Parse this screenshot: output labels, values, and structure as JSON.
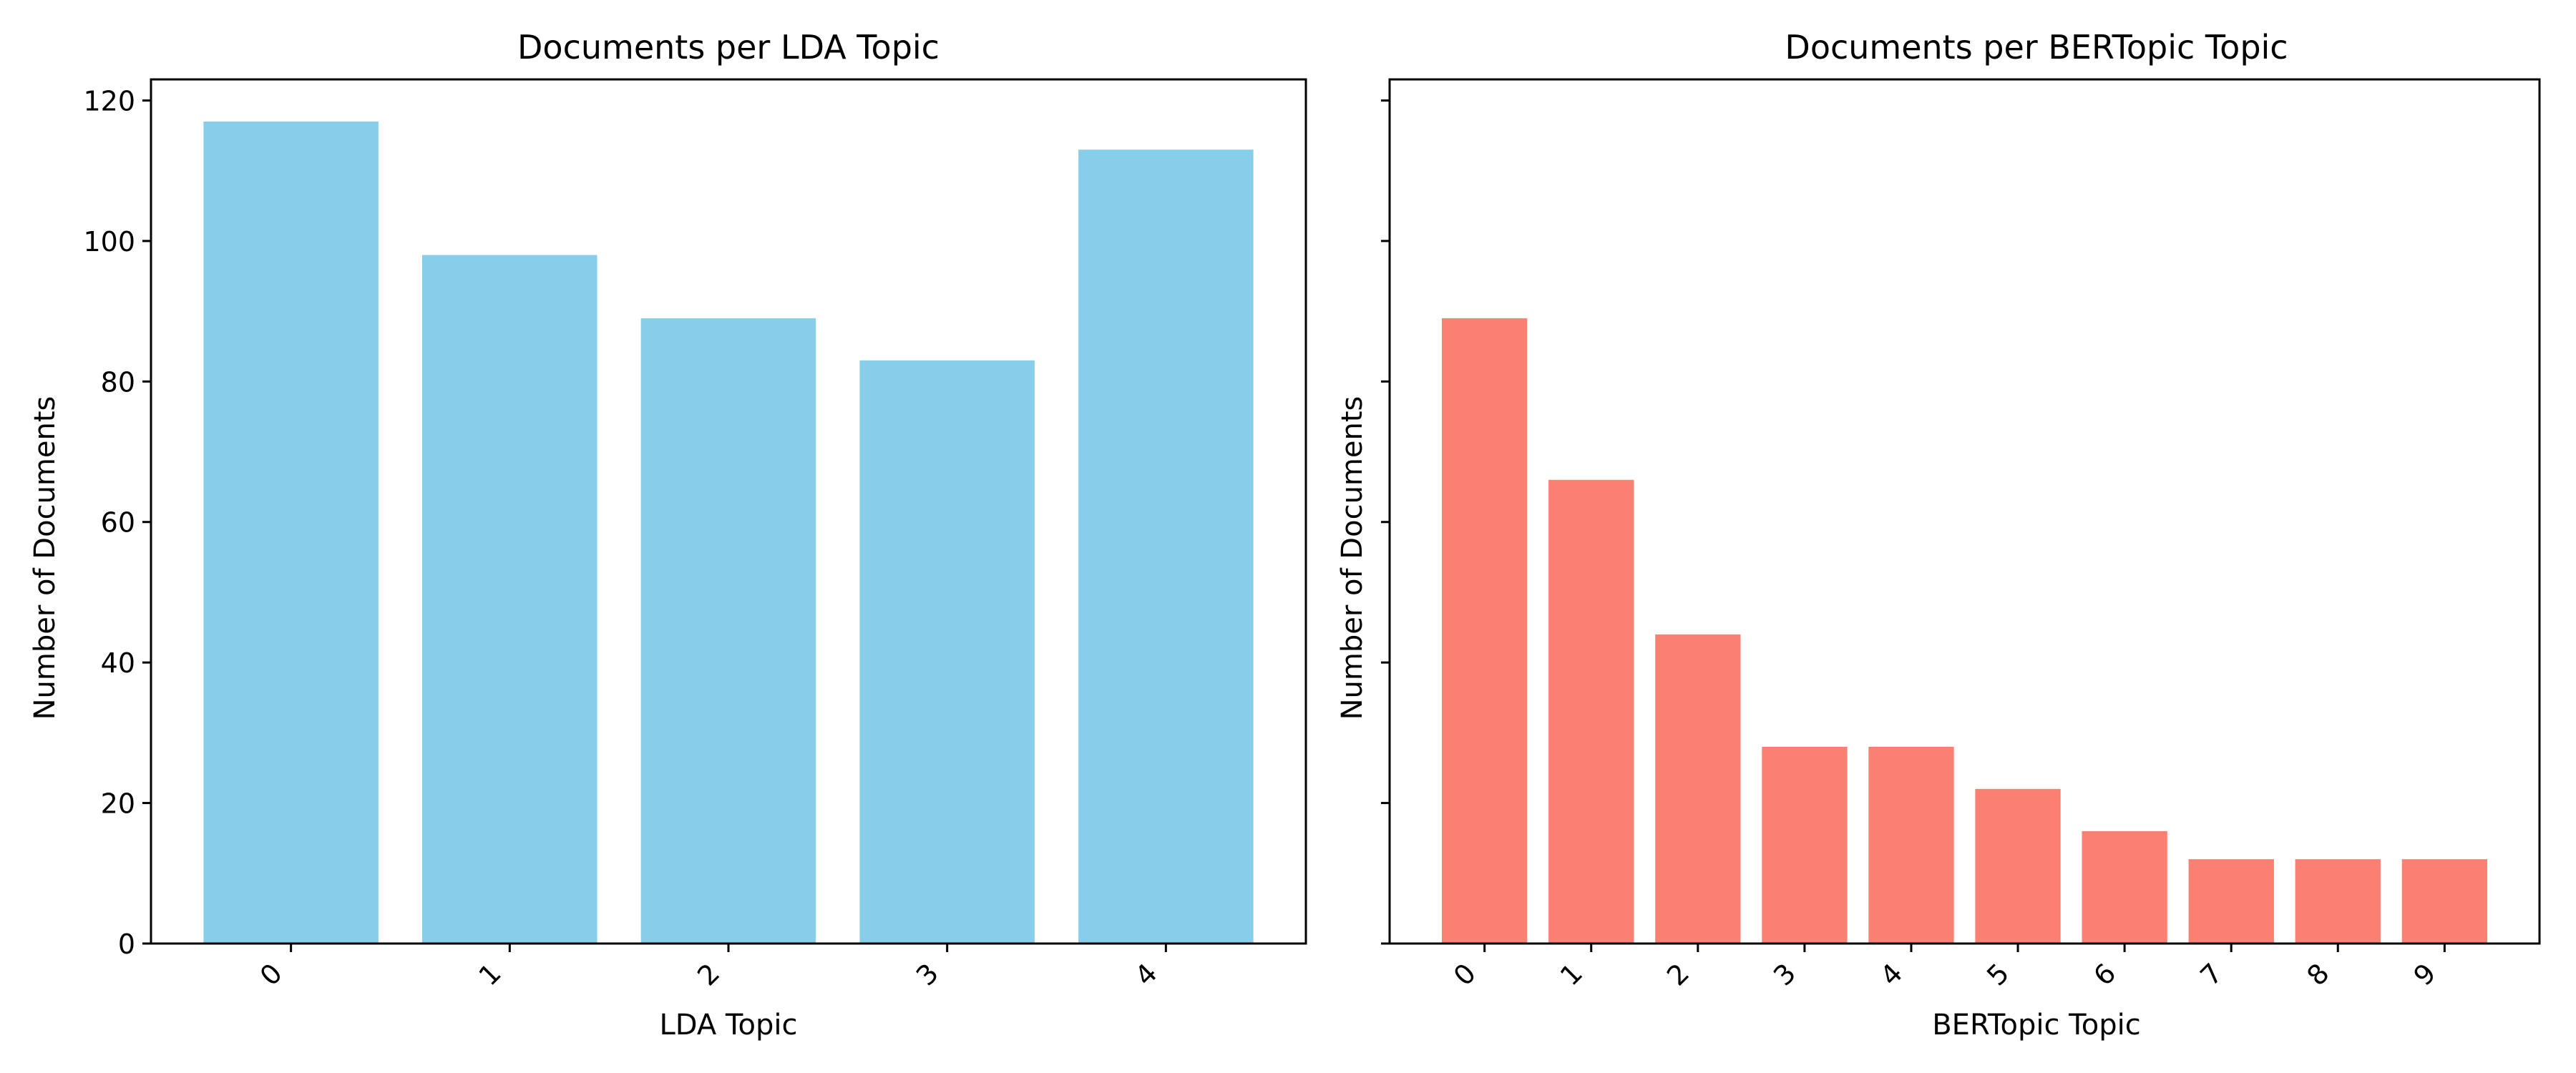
{
  "chart_data": [
    {
      "type": "bar",
      "title": "Documents per LDA Topic",
      "xlabel": "LDA Topic",
      "ylabel": "Number of Documents",
      "categories": [
        "0",
        "1",
        "2",
        "3",
        "4"
      ],
      "values": [
        117,
        98,
        89,
        83,
        113
      ],
      "ylim": [
        0,
        123
      ],
      "yticks": [
        0,
        20,
        40,
        60,
        80,
        100,
        120
      ],
      "show_ytick_labels": true,
      "color": "#87ceeb",
      "grid": false,
      "legend": "none"
    },
    {
      "type": "bar",
      "title": "Documents per BERTopic Topic",
      "xlabel": "BERTopic Topic",
      "ylabel": "Number of Documents",
      "categories": [
        "0",
        "1",
        "2",
        "3",
        "4",
        "5",
        "6",
        "7",
        "8",
        "9"
      ],
      "values": [
        89,
        66,
        44,
        28,
        28,
        22,
        16,
        12,
        12,
        12
      ],
      "ylim": [
        0,
        123
      ],
      "yticks": [
        0,
        20,
        40,
        60,
        80,
        100,
        120
      ],
      "show_ytick_labels": false,
      "color": "#fa8072",
      "grid": false,
      "legend": "none"
    }
  ]
}
